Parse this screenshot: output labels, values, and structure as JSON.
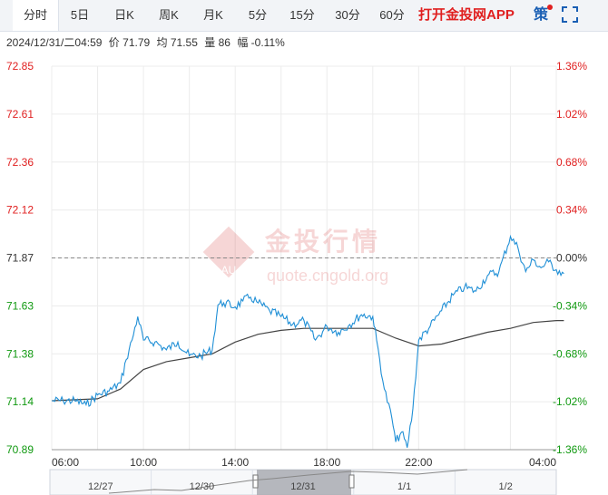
{
  "tabs": [
    {
      "label": "分时",
      "active": true
    },
    {
      "label": "5日"
    },
    {
      "label": "日K"
    },
    {
      "label": "周K"
    },
    {
      "label": "月K"
    },
    {
      "label": "5分"
    },
    {
      "label": "15分"
    },
    {
      "label": "30分"
    },
    {
      "label": "60分"
    }
  ],
  "app_link": "打开金投网APP",
  "strategy_label": "策",
  "info": {
    "datetime": "2024/12/31/二04:59",
    "price_label": "价",
    "price": "71.79",
    "avg_label": "均",
    "avg": "71.55",
    "vol_label": "量",
    "vol": "86",
    "chg_label": "幅",
    "chg": "-0.11%"
  },
  "watermark": {
    "cn": "金投行情",
    "url": "quote.cngold.org",
    "logo": "AU"
  },
  "colors": {
    "up": "#e02020",
    "down": "#109910",
    "neutral": "#333333",
    "line": "#1f8fd6",
    "avg": "#444444",
    "grid": "#ececec"
  },
  "chart_data": {
    "type": "line",
    "reference_price": 71.87,
    "ylim": [
      70.89,
      72.85
    ],
    "y_ticks": [
      "72.85",
      "72.61",
      "72.36",
      "72.12",
      "71.87",
      "71.63",
      "71.38",
      "71.14",
      "70.89"
    ],
    "pct_ticks": [
      "1.36%",
      "1.02%",
      "0.68%",
      "0.34%",
      "0.00%",
      "-0.34%",
      "-0.68%",
      "-1.02%",
      "-1.36%"
    ],
    "x_ticks": [
      "06:00",
      "10:00",
      "14:00",
      "18:00",
      "22:00",
      "04:00"
    ],
    "price_series": [
      [
        "06:00",
        71.14
      ],
      [
        "06:30",
        71.14
      ],
      [
        "07:00",
        71.14
      ],
      [
        "07:30",
        71.12
      ],
      [
        "08:00",
        71.17
      ],
      [
        "08:30",
        71.19
      ],
      [
        "09:00",
        71.23
      ],
      [
        "09:15",
        71.35
      ],
      [
        "09:30",
        71.45
      ],
      [
        "09:45",
        71.57
      ],
      [
        "10:00",
        71.45
      ],
      [
        "10:30",
        71.44
      ],
      [
        "11:00",
        71.4
      ],
      [
        "11:30",
        71.44
      ],
      [
        "12:00",
        71.37
      ],
      [
        "12:30",
        71.37
      ],
      [
        "13:00",
        71.4
      ],
      [
        "13:15",
        71.63
      ],
      [
        "13:30",
        71.64
      ],
      [
        "14:00",
        71.62
      ],
      [
        "14:20",
        71.65
      ],
      [
        "14:40",
        71.67
      ],
      [
        "15:00",
        71.64
      ],
      [
        "15:30",
        71.6
      ],
      [
        "16:00",
        71.57
      ],
      [
        "16:30",
        71.53
      ],
      [
        "17:00",
        71.55
      ],
      [
        "17:30",
        71.45
      ],
      [
        "18:00",
        71.52
      ],
      [
        "18:30",
        71.49
      ],
      [
        "19:00",
        71.53
      ],
      [
        "19:30",
        71.58
      ],
      [
        "20:00",
        71.57
      ],
      [
        "20:10",
        71.45
      ],
      [
        "20:30",
        71.2
      ],
      [
        "20:50",
        71.05
      ],
      [
        "21:00",
        70.93
      ],
      [
        "21:15",
        70.98
      ],
      [
        "21:30",
        70.9
      ],
      [
        "21:45",
        71.1
      ],
      [
        "22:00",
        71.45
      ],
      [
        "22:30",
        71.52
      ],
      [
        "23:00",
        71.6
      ],
      [
        "23:30",
        71.68
      ],
      [
        "00:00",
        71.72
      ],
      [
        "00:30",
        71.7
      ],
      [
        "01:00",
        71.78
      ],
      [
        "01:30",
        71.8
      ],
      [
        "02:00",
        71.98
      ],
      [
        "02:20",
        71.92
      ],
      [
        "02:40",
        71.8
      ],
      [
        "03:00",
        71.86
      ],
      [
        "03:20",
        71.82
      ],
      [
        "03:40",
        71.85
      ],
      [
        "04:00",
        71.81
      ],
      [
        "04:20",
        71.79
      ]
    ],
    "avg_series": [
      [
        "06:00",
        71.14
      ],
      [
        "08:00",
        71.15
      ],
      [
        "09:00",
        71.2
      ],
      [
        "10:00",
        71.3
      ],
      [
        "11:00",
        71.34
      ],
      [
        "12:00",
        71.36
      ],
      [
        "13:00",
        71.38
      ],
      [
        "14:00",
        71.44
      ],
      [
        "15:00",
        71.48
      ],
      [
        "16:00",
        71.5
      ],
      [
        "17:00",
        71.51
      ],
      [
        "18:00",
        71.51
      ],
      [
        "19:00",
        71.51
      ],
      [
        "20:00",
        71.51
      ],
      [
        "21:00",
        71.46
      ],
      [
        "22:00",
        71.42
      ],
      [
        "23:00",
        71.43
      ],
      [
        "00:00",
        71.46
      ],
      [
        "01:00",
        71.49
      ],
      [
        "02:00",
        71.51
      ],
      [
        "03:00",
        71.54
      ],
      [
        "04:00",
        71.55
      ],
      [
        "04:20",
        71.55
      ]
    ],
    "navigator_labels": [
      "12/27",
      "12/30",
      "12/31",
      "1/1",
      "1/2"
    ]
  }
}
